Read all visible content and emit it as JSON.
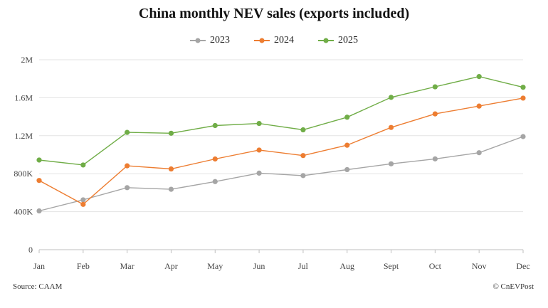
{
  "source": "Source: CAAM",
  "credit": "© CnEVPost",
  "chart_data": {
    "type": "line",
    "title": "China monthly NEV sales (exports included)",
    "xlabel": "",
    "ylabel": "",
    "categories": [
      "Jan",
      "Feb",
      "Mar",
      "Apr",
      "May",
      "Jun",
      "Jul",
      "Aug",
      "Sept",
      "Oct",
      "Nov",
      "Dec"
    ],
    "ylim": [
      0,
      2000000
    ],
    "yticks": [
      0,
      400000,
      800000,
      1200000,
      1600000,
      2000000
    ],
    "ytick_labels": [
      "0",
      "400K",
      "800K",
      "1.2M",
      "1.6M",
      "2M"
    ],
    "grid": true,
    "legend_position": "top-center",
    "series": [
      {
        "name": "2023",
        "color": "#a5a5a5",
        "values": [
          408000,
          525000,
          653000,
          636000,
          717000,
          806000,
          780000,
          843000,
          904000,
          956000,
          1021000,
          1191000
        ]
      },
      {
        "name": "2024",
        "color": "#ed7d31",
        "values": [
          729000,
          477000,
          883000,
          850000,
          955000,
          1049000,
          991000,
          1100000,
          1287000,
          1430000,
          1512000,
          1596000
        ]
      },
      {
        "name": "2025",
        "color": "#70ad47",
        "values": [
          944000,
          892000,
          1235000,
          1226000,
          1307000,
          1329000,
          1262000,
          1395000,
          1604000,
          1715000,
          1823000,
          1710000
        ]
      }
    ]
  }
}
